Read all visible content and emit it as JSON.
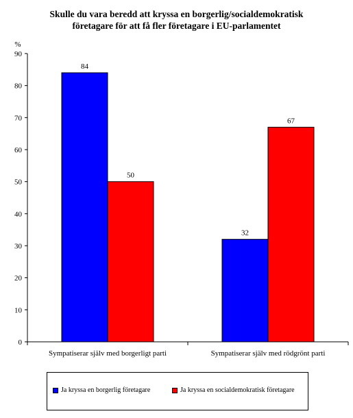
{
  "chart_data": {
    "type": "bar",
    "title_lines": [
      "Skulle du vara beredd att kryssa en borgerlig/socialdemokratisk",
      "företagare för att få fler företagare i EU-parlamentet"
    ],
    "ylabel": "%",
    "ylim": [
      0,
      90
    ],
    "yticks": [
      0,
      10,
      20,
      30,
      40,
      50,
      60,
      70,
      80,
      90
    ],
    "categories": [
      "Sympatiserar själv med borgerligt parti",
      "Sympatiserar själv med rödgrönt parti"
    ],
    "series": [
      {
        "name": "Ja kryssa en borgerlig företagare",
        "color": "#0000ff",
        "values": [
          84,
          32
        ]
      },
      {
        "name": "Ja kryssa en socialdemokratisk företagare",
        "color": "#ff0000",
        "values": [
          50,
          67
        ]
      }
    ],
    "grid": false,
    "legend_position": "bottom"
  }
}
